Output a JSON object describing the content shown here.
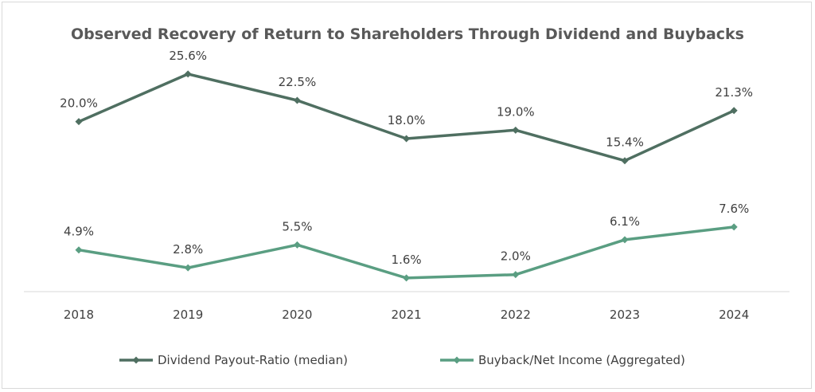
{
  "chart_data": {
    "type": "line",
    "title": "Observed Recovery of Return to Shareholders Through Dividend and Buybacks",
    "categories": [
      "2018",
      "2019",
      "2020",
      "2021",
      "2022",
      "2023",
      "2024"
    ],
    "series": [
      {
        "name": "Dividend Payout-Ratio (median)",
        "values": [
          20.0,
          25.6,
          22.5,
          18.0,
          19.0,
          15.4,
          21.3
        ],
        "labels": [
          "20.0%",
          "25.6%",
          "22.5%",
          "18.0%",
          "19.0%",
          "15.4%",
          "21.3%"
        ],
        "color": "#4f6f61"
      },
      {
        "name": "Buyback/Net Income (Aggregated)",
        "values": [
          4.9,
          2.8,
          5.5,
          1.6,
          2.0,
          6.1,
          7.6
        ],
        "labels": [
          "4.9%",
          "2.8%",
          "5.5%",
          "1.6%",
          "2.0%",
          "6.1%",
          "7.6%"
        ],
        "color": "#5a9e82"
      }
    ],
    "xlabel": "",
    "ylabel": "",
    "ylim": [
      0,
      30
    ],
    "grid": false,
    "legend": "bottom-center"
  }
}
